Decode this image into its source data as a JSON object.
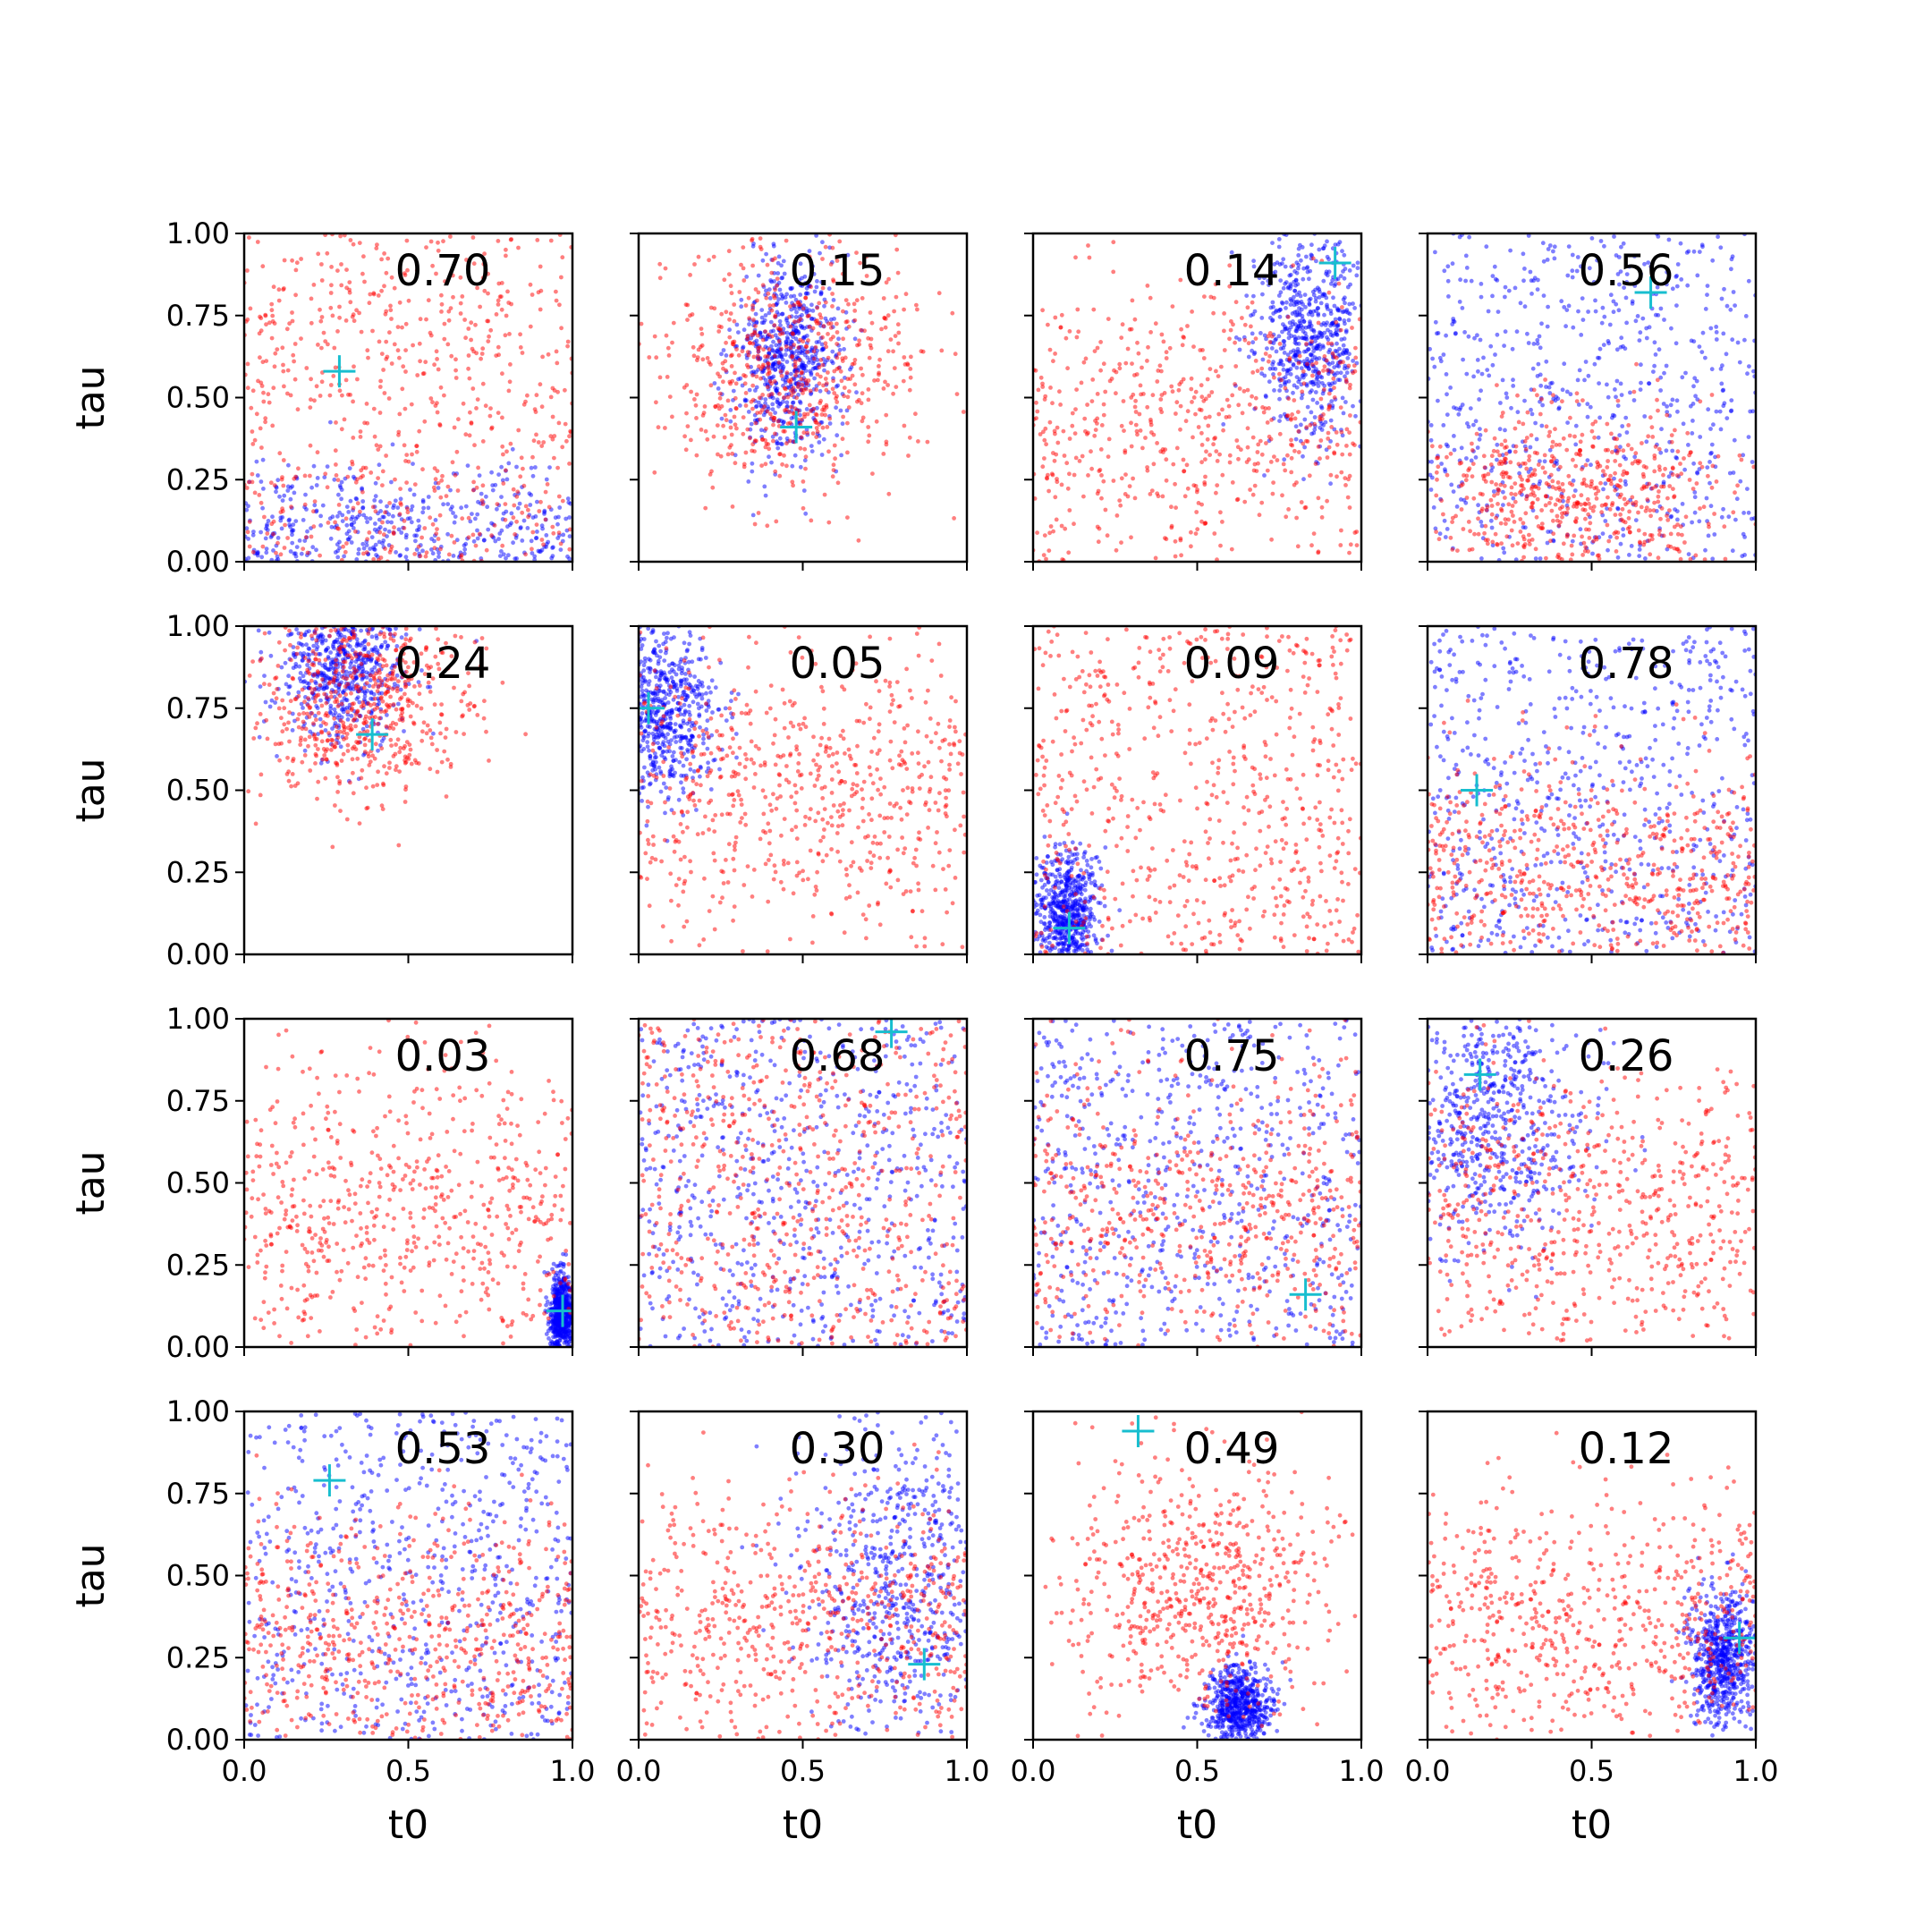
{
  "chart_data": {
    "type": "scatter",
    "grid": false,
    "layout": "4x4 grid of panels",
    "x_tick_labels": [
      "0.0",
      "0.5",
      "1.0"
    ],
    "y_tick_labels": [
      "0.00",
      "0.25",
      "0.50",
      "0.75",
      "1.00"
    ],
    "xlim": [
      0,
      1
    ],
    "ylim": [
      0,
      1
    ],
    "xlabel": "t0",
    "ylabel": "tau",
    "colors": {
      "blue": "#0000ff",
      "red": "#ff0000",
      "marker": "#17becf"
    },
    "panels": [
      {
        "annotation": "0.70",
        "marker": {
          "t0": 0.29,
          "tau": 0.58
        },
        "blue": {
          "t0": 0.4,
          "tau": 0.05,
          "spread": [
            0.3,
            0.12
          ]
        },
        "red": {
          "t0": 0.5,
          "tau": 0.5,
          "spread": [
            0.29,
            0.29
          ]
        }
      },
      {
        "annotation": "0.15",
        "marker": {
          "t0": 0.48,
          "tau": 0.41
        },
        "blue": {
          "t0": 0.45,
          "tau": 0.62,
          "spread": [
            0.08,
            0.15
          ]
        },
        "red": {
          "t0": 0.45,
          "tau": 0.6,
          "spread": [
            0.2,
            0.18
          ]
        }
      },
      {
        "annotation": "0.14",
        "marker": {
          "t0": 0.92,
          "tau": 0.91
        },
        "blue": {
          "t0": 0.85,
          "tau": 0.67,
          "spread": [
            0.09,
            0.16
          ]
        },
        "red": {
          "t0": 0.5,
          "tau": 0.4,
          "spread": [
            0.28,
            0.25
          ]
        }
      },
      {
        "annotation": "0.56",
        "marker": {
          "t0": 0.68,
          "tau": 0.82
        },
        "blue": {
          "t0": 0.5,
          "tau": 0.55,
          "spread": [
            0.29,
            0.28
          ]
        },
        "red": {
          "t0": 0.45,
          "tau": 0.2,
          "spread": [
            0.25,
            0.14
          ]
        }
      },
      {
        "annotation": "0.24",
        "marker": {
          "t0": 0.39,
          "tau": 0.67
        },
        "blue": {
          "t0": 0.3,
          "tau": 0.88,
          "spread": [
            0.1,
            0.12
          ]
        },
        "red": {
          "t0": 0.35,
          "tau": 0.78,
          "spread": [
            0.17,
            0.15
          ]
        }
      },
      {
        "annotation": "0.05",
        "marker": {
          "t0": 0.03,
          "tau": 0.75
        },
        "blue": {
          "t0": 0.07,
          "tau": 0.75,
          "spread": [
            0.08,
            0.13
          ]
        },
        "red": {
          "t0": 0.45,
          "tau": 0.5,
          "spread": [
            0.28,
            0.22
          ]
        }
      },
      {
        "annotation": "0.09",
        "marker": {
          "t0": 0.11,
          "tau": 0.08
        },
        "blue": {
          "t0": 0.1,
          "tau": 0.12,
          "spread": [
            0.05,
            0.1
          ]
        },
        "red": {
          "t0": 0.55,
          "tau": 0.4,
          "spread": [
            0.28,
            0.27
          ]
        }
      },
      {
        "annotation": "0.78",
        "marker": {
          "t0": 0.15,
          "tau": 0.5
        },
        "blue": {
          "t0": 0.5,
          "tau": 0.5,
          "spread": [
            0.29,
            0.29
          ]
        },
        "red": {
          "t0": 0.5,
          "tau": 0.25,
          "spread": [
            0.27,
            0.18
          ]
        }
      },
      {
        "annotation": "0.03",
        "marker": {
          "t0": 0.97,
          "tau": 0.11
        },
        "blue": {
          "t0": 0.97,
          "tau": 0.1,
          "spread": [
            0.02,
            0.06
          ]
        },
        "red": {
          "t0": 0.5,
          "tau": 0.4,
          "spread": [
            0.28,
            0.25
          ]
        }
      },
      {
        "annotation": "0.68",
        "marker": {
          "t0": 0.77,
          "tau": 0.96
        },
        "blue": {
          "t0": 0.5,
          "tau": 0.45,
          "spread": [
            0.29,
            0.29
          ]
        },
        "red": {
          "t0": 0.5,
          "tau": 0.45,
          "spread": [
            0.29,
            0.29
          ]
        }
      },
      {
        "annotation": "0.75",
        "marker": {
          "t0": 0.83,
          "tau": 0.16
        },
        "blue": {
          "t0": 0.5,
          "tau": 0.4,
          "spread": [
            0.29,
            0.28
          ]
        },
        "red": {
          "t0": 0.5,
          "tau": 0.4,
          "spread": [
            0.28,
            0.25
          ]
        }
      },
      {
        "annotation": "0.26",
        "marker": {
          "t0": 0.16,
          "tau": 0.83
        },
        "blue": {
          "t0": 0.2,
          "tau": 0.7,
          "spread": [
            0.15,
            0.2
          ]
        },
        "red": {
          "t0": 0.5,
          "tau": 0.4,
          "spread": [
            0.27,
            0.22
          ]
        }
      },
      {
        "annotation": "0.53",
        "marker": {
          "t0": 0.26,
          "tau": 0.79
        },
        "blue": {
          "t0": 0.4,
          "tau": 0.45,
          "spread": [
            0.28,
            0.29
          ]
        },
        "red": {
          "t0": 0.55,
          "tau": 0.3,
          "spread": [
            0.27,
            0.2
          ]
        }
      },
      {
        "annotation": "0.30",
        "marker": {
          "t0": 0.87,
          "tau": 0.23
        },
        "blue": {
          "t0": 0.8,
          "tau": 0.5,
          "spread": [
            0.15,
            0.25
          ]
        },
        "red": {
          "t0": 0.45,
          "tau": 0.35,
          "spread": [
            0.28,
            0.22
          ]
        }
      },
      {
        "annotation": "0.49",
        "marker": {
          "t0": 0.32,
          "tau": 0.94
        },
        "blue": {
          "t0": 0.63,
          "tau": 0.1,
          "spread": [
            0.05,
            0.06
          ]
        },
        "red": {
          "t0": 0.5,
          "tau": 0.45,
          "spread": [
            0.22,
            0.2
          ]
        }
      },
      {
        "annotation": "0.12",
        "marker": {
          "t0": 0.95,
          "tau": 0.31
        },
        "blue": {
          "t0": 0.9,
          "tau": 0.25,
          "spread": [
            0.05,
            0.1
          ]
        },
        "red": {
          "t0": 0.5,
          "tau": 0.35,
          "spread": [
            0.28,
            0.2
          ]
        }
      }
    ]
  }
}
